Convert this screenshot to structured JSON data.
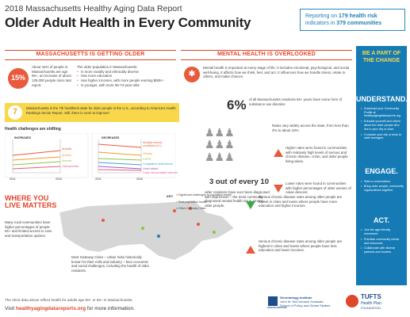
{
  "header": {
    "top_title": "2018 Massachusetts Healthy Aging Data Report",
    "main_title": "Older Adult Health in Every Community",
    "report_pre": "Reporting on ",
    "report_n1": "179 health risk",
    "report_mid": "indicators in ",
    "report_n2": "379 communities"
  },
  "older": {
    "title": "MASSACHUSETTS IS GETTING OLDER",
    "pct": "15%",
    "left_text": "About 15% of people in Massachusetts are age 65+, an increase of about 125,000 people since last report.",
    "right_intro": "The older population in Massachusetts:",
    "bullets": [
      "Is more racially and ethnically diverse",
      "Has more education",
      "Has higher incomes, with more people earning $50K+",
      "Is younger, with more 65-74-year-olds"
    ]
  },
  "rank": {
    "number": "7",
    "text": "Massachusetts is the 7th healthiest state for older people in the U.S., according to America's Health Rankings Senior Report. Still, there is room to improve!"
  },
  "shifting": {
    "title": "Health challenges are shifting",
    "inc_label": "INCREASES",
    "dec_label": "DECREASES",
    "years": [
      "2011",
      "2015",
      "2011",
      "2015"
    ],
    "inc_series": [
      "Arthritis",
      "Anxiety",
      "Anemia",
      "Osteoporosis"
    ],
    "dec_series": [
      "Multiple chronic conditions (4+)",
      "Obesity",
      "COPD",
      "Congestive heart failure",
      "Heart attack",
      "Colon and prostate cancers"
    ]
  },
  "mental": {
    "title": "MENTAL HEALTH IS OVERLOOKED",
    "intro": "Mental health is important at every stage of life. It includes emotional, psychological, and social well-being. It affects how we think, feel, and act. It influences how we handle stress, relate to others, and make choices.",
    "pct": "6%",
    "pct_text": "of all Massachusetts residents 65+ years have some form of substance use disorder.",
    "range_text": "Rates vary widely across the state, from less than 4% to about 16%.",
    "big": "3 out of every 10",
    "big_text": "older residents have ever been diagnosed with depression – the most commonly diagnosed mental health issue among older people.",
    "higher": "Higher rates were found in communities with relatively high levels of serious and chronic disease, crime, and older people living alone.",
    "lower": "Lower rates were found in communities with higher percentages of older women of Asian descent."
  },
  "where": {
    "title": "WHERE YOU LIVE MATTERS",
    "left_text": "Many rural communities have higher percentages of people 65+ and limited access to care and transportation options.",
    "gateway_text": "Most Gateway Cities – urban hubs historically known for their mills and industry – face economic and social challenges, including the health of older residents.",
    "key": "KEY",
    "legend": [
      "Significant challenges in population health",
      "Best population health",
      "Other Gateway Cities"
    ],
    "chronic1": "Serious chronic disease rates among older people are lowest in cities and towns where people have more education and higher incomes.",
    "chronic2": "Serious chronic disease rates among older people are highest in cities and towns where people have less education and lower incomes."
  },
  "side": {
    "title": "BE A PART OF THE CHANGE",
    "h1": "UNDERSTAND.",
    "u_items": [
      "Download your Community Profile at healthyagingdatareports.org",
      "Educate yourself and others about the older people who live in your city or town.",
      "Compare your city or town to state averages."
    ],
    "h2": "ENGAGE.",
    "e_items": [
      "Start a conversation.",
      "Bring older people, community organizations together."
    ],
    "h3": "ACT.",
    "a_items": [
      "Join the age-friendly movement.",
      "Prioritize community needs and resources.",
      "Collaborate with diverse partners and funders."
    ]
  },
  "footer": {
    "note": "The 2015 data above reflect health for adults age 60+ or 65+ in Massachusetts.",
    "visit_pre": "Visit ",
    "visit_link": "healthyagingdatareports.org",
    "visit_post": " for more information.",
    "gi": "Gerontology Institute",
    "gi2": "John W. McCormack Graduate",
    "gi3": "School of Policy and Global Studies",
    "umass": "UMASS BOSTON",
    "tufts": "TUFTS",
    "tufts2": "Health Plan",
    "tufts3": "FOUNDATION"
  }
}
